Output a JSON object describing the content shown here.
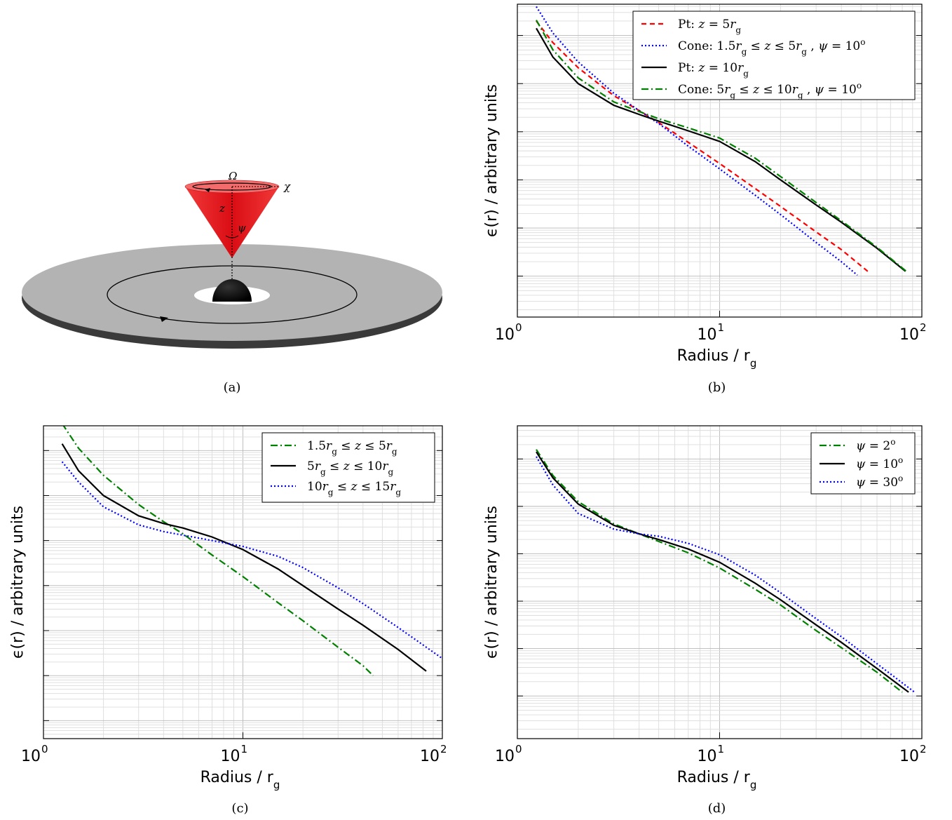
{
  "chart_data": [
    {
      "id": "a",
      "type": "diagram",
      "caption": "(a)",
      "labels": {
        "omega": "Ω",
        "chi": "χ",
        "z": "z",
        "psi": "ψ"
      },
      "colors": {
        "cone": "#e8111a",
        "disk": "#b3b3b3",
        "black_hole": "#000000"
      }
    },
    {
      "id": "b",
      "type": "line",
      "caption": "(b)",
      "xlabel": "Radius / r",
      "xlabel_sub": "g",
      "ylabel": "ϵ(r) / arbitrary units",
      "xscale": "log",
      "yscale": "log",
      "xlim": [
        1,
        100
      ],
      "ylim_decades": [
        -4.85,
        1.65
      ],
      "xticks": [
        {
          "base": "10",
          "exp": "0",
          "value": 1
        },
        {
          "base": "10",
          "exp": "1",
          "value": 10
        },
        {
          "base": "10",
          "exp": "2",
          "value": 100
        }
      ],
      "grid": true,
      "legend_position": "top-right",
      "series": [
        {
          "name": "Pt: z = 5r_g",
          "color": "#ff0000",
          "dash": "7 5",
          "legend": [
            {
              "t": "Pt: "
            },
            {
              "t": "z",
              "i": true
            },
            {
              "t": " = 5"
            },
            {
              "t": "r",
              "i": true
            },
            {
              "t": "g",
              "sub": true
            }
          ],
          "x": [
            1.24,
            1.5,
            2,
            3,
            4,
            5,
            7,
            10,
            15,
            20,
            30,
            40,
            54
          ],
          "y": [
            1.3,
            0.85,
            0.33,
            -0.25,
            -0.56,
            -0.81,
            -1.22,
            -1.66,
            -2.18,
            -2.55,
            -3.08,
            -3.45,
            -3.9
          ]
        },
        {
          "name": "Cone: 1.5r_g ≤ z ≤ 5r_g , ψ = 10°",
          "color": "#0000ff",
          "dash": "2 3",
          "legend": [
            {
              "t": "Cone: 1.5"
            },
            {
              "t": "r",
              "i": true
            },
            {
              "t": "g",
              "sub": true
            },
            {
              "t": " ≤ "
            },
            {
              "t": "z",
              "i": true
            },
            {
              "t": " ≤ 5"
            },
            {
              "t": "r",
              "i": true
            },
            {
              "t": "g",
              "sub": true
            },
            {
              "t": " , "
            },
            {
              "t": "ψ",
              "i": true
            },
            {
              "t": " = 10"
            },
            {
              "t": "o",
              "sup": true
            }
          ],
          "x": [
            1.24,
            1.5,
            2,
            3,
            4,
            5,
            7,
            10,
            15,
            20,
            30,
            40,
            48
          ],
          "y": [
            1.6,
            1.05,
            0.45,
            -0.2,
            -0.56,
            -0.83,
            -1.3,
            -1.77,
            -2.32,
            -2.72,
            -3.3,
            -3.7,
            -3.98
          ]
        },
        {
          "name": "Pt: z = 10r_g",
          "color": "#000000",
          "dash": "",
          "legend": [
            {
              "t": "Pt: "
            },
            {
              "t": "z",
              "i": true
            },
            {
              "t": " = 10"
            },
            {
              "t": "r",
              "i": true
            },
            {
              "t": "g",
              "sub": true
            }
          ],
          "x": [
            1.24,
            1.5,
            2,
            3,
            4,
            5,
            7,
            10,
            15,
            20,
            30,
            40,
            60,
            83
          ],
          "y": [
            1.15,
            0.55,
            0.0,
            -0.45,
            -0.64,
            -0.78,
            -0.98,
            -1.2,
            -1.62,
            -2.0,
            -2.52,
            -2.88,
            -3.42,
            -3.9
          ]
        },
        {
          "name": "Cone: 5r_g ≤ z ≤ 10r_g , ψ = 10°",
          "color": "#008000",
          "dash": "10 4 2 4",
          "legend": [
            {
              "t": "Cone: 5"
            },
            {
              "t": "r",
              "i": true
            },
            {
              "t": "g",
              "sub": true
            },
            {
              "t": " ≤ "
            },
            {
              "t": "z",
              "i": true
            },
            {
              "t": " ≤ 10"
            },
            {
              "t": "r",
              "i": true
            },
            {
              "t": "g",
              "sub": true
            },
            {
              "t": " , "
            },
            {
              "t": "ψ",
              "i": true
            },
            {
              "t": " = 10"
            },
            {
              "t": "o",
              "sup": true
            }
          ],
          "x": [
            1.24,
            1.5,
            2,
            3,
            4,
            5,
            7,
            10,
            15,
            20,
            30,
            40,
            60,
            85
          ],
          "y": [
            1.32,
            0.7,
            0.12,
            -0.38,
            -0.58,
            -0.73,
            -0.92,
            -1.13,
            -1.55,
            -1.93,
            -2.47,
            -2.85,
            -3.4,
            -3.92
          ]
        }
      ]
    },
    {
      "id": "c",
      "type": "line",
      "caption": "(c)",
      "xlabel": "Radius / r",
      "xlabel_sub": "g",
      "ylabel": "ϵ(r) / arbitrary units",
      "xscale": "log",
      "yscale": "log",
      "xlim": [
        1,
        100
      ],
      "ylim_decades": [
        -5.4,
        1.55
      ],
      "xticks": [
        {
          "base": "10",
          "exp": "0",
          "value": 1
        },
        {
          "base": "10",
          "exp": "1",
          "value": 10
        },
        {
          "base": "10",
          "exp": "2",
          "value": 100
        }
      ],
      "grid": true,
      "legend_position": "top-right",
      "series": [
        {
          "name": "1.5r_g ≤ z ≤ 5r_g",
          "color": "#008000",
          "dash": "10 4 2 4",
          "legend": [
            {
              "t": "1.5"
            },
            {
              "t": "r",
              "i": true
            },
            {
              "t": "g",
              "sub": true
            },
            {
              "t": " ≤ "
            },
            {
              "t": "z",
              "i": true
            },
            {
              "t": " ≤ 5"
            },
            {
              "t": "r",
              "i": true
            },
            {
              "t": "g",
              "sub": true
            }
          ],
          "x": [
            1.24,
            1.5,
            2,
            3,
            4,
            5,
            7,
            10,
            15,
            20,
            30,
            40,
            45
          ],
          "y": [
            1.6,
            1.05,
            0.45,
            -0.2,
            -0.58,
            -0.85,
            -1.32,
            -1.8,
            -2.38,
            -2.78,
            -3.37,
            -3.78,
            -4.0
          ]
        },
        {
          "name": "5r_g ≤ z ≤ 10r_g",
          "color": "#000000",
          "dash": "",
          "legend": [
            {
              "t": "5"
            },
            {
              "t": "r",
              "i": true
            },
            {
              "t": "g",
              "sub": true
            },
            {
              "t": " ≤ "
            },
            {
              "t": "z",
              "i": true
            },
            {
              "t": " ≤ 10"
            },
            {
              "t": "r",
              "i": true
            },
            {
              "t": "g",
              "sub": true
            }
          ],
          "x": [
            1.24,
            1.5,
            2,
            3,
            4,
            5,
            7,
            10,
            15,
            20,
            30,
            40,
            60,
            83
          ],
          "y": [
            1.15,
            0.55,
            0.0,
            -0.45,
            -0.62,
            -0.72,
            -0.92,
            -1.2,
            -1.63,
            -2.0,
            -2.52,
            -2.88,
            -3.42,
            -3.9
          ]
        },
        {
          "name": "10r_g ≤ z ≤ 15r_g",
          "color": "#0000ff",
          "dash": "2 3",
          "legend": [
            {
              "t": "10"
            },
            {
              "t": "r",
              "i": true
            },
            {
              "t": "g",
              "sub": true
            },
            {
              "t": " ≤ "
            },
            {
              "t": "z",
              "i": true
            },
            {
              "t": " ≤ 15"
            },
            {
              "t": "r",
              "i": true
            },
            {
              "t": "g",
              "sub": true
            }
          ],
          "x": [
            1.24,
            1.5,
            2,
            3,
            4,
            5,
            7,
            10,
            15,
            20,
            30,
            40,
            60,
            100
          ],
          "y": [
            0.75,
            0.3,
            -0.25,
            -0.65,
            -0.8,
            -0.88,
            -1.0,
            -1.13,
            -1.35,
            -1.6,
            -2.05,
            -2.4,
            -2.93,
            -3.62
          ]
        }
      ]
    },
    {
      "id": "d",
      "type": "line",
      "caption": "(d)",
      "xlabel": "Radius / r",
      "xlabel_sub": "g",
      "ylabel": "ϵ(r) / arbitrary units",
      "xscale": "log",
      "yscale": "log",
      "xlim": [
        1,
        100
      ],
      "ylim_decades": [
        -4.9,
        1.7
      ],
      "xticks": [
        {
          "base": "10",
          "exp": "0",
          "value": 1
        },
        {
          "base": "10",
          "exp": "1",
          "value": 10
        },
        {
          "base": "10",
          "exp": "2",
          "value": 100
        }
      ],
      "grid": true,
      "legend_position": "top-right",
      "series": [
        {
          "name": "ψ = 2°",
          "color": "#008000",
          "dash": "10 4 2 4",
          "legend": [
            {
              "t": "ψ",
              "i": true
            },
            {
              "t": " = 2"
            },
            {
              "t": "o",
              "sup": true
            }
          ],
          "x": [
            1.24,
            1.5,
            2,
            3,
            4,
            5,
            7,
            10,
            15,
            20,
            30,
            40,
            60,
            80
          ],
          "y": [
            1.2,
            0.65,
            0.1,
            -0.37,
            -0.58,
            -0.74,
            -0.98,
            -1.3,
            -1.75,
            -2.08,
            -2.62,
            -2.98,
            -3.5,
            -3.92
          ]
        },
        {
          "name": "ψ = 10°",
          "color": "#000000",
          "dash": "",
          "legend": [
            {
              "t": "ψ",
              "i": true
            },
            {
              "t": " = 10"
            },
            {
              "t": "o",
              "sup": true
            }
          ],
          "x": [
            1.24,
            1.5,
            2,
            3,
            4,
            5,
            7,
            10,
            15,
            20,
            30,
            40,
            60,
            86
          ],
          "y": [
            1.15,
            0.6,
            0.05,
            -0.4,
            -0.58,
            -0.7,
            -0.9,
            -1.18,
            -1.62,
            -1.97,
            -2.5,
            -2.87,
            -3.42,
            -3.92
          ]
        },
        {
          "name": "ψ = 30°",
          "color": "#0000ff",
          "dash": "2 3",
          "legend": [
            {
              "t": "ψ",
              "i": true
            },
            {
              "t": " = 30"
            },
            {
              "t": "o",
              "sup": true
            }
          ],
          "x": [
            1.24,
            1.5,
            2,
            3,
            4,
            5,
            7,
            10,
            15,
            20,
            30,
            40,
            60,
            92
          ],
          "y": [
            1.05,
            0.45,
            -0.15,
            -0.48,
            -0.58,
            -0.63,
            -0.78,
            -1.02,
            -1.45,
            -1.82,
            -2.37,
            -2.75,
            -3.32,
            -3.92
          ]
        }
      ]
    }
  ]
}
